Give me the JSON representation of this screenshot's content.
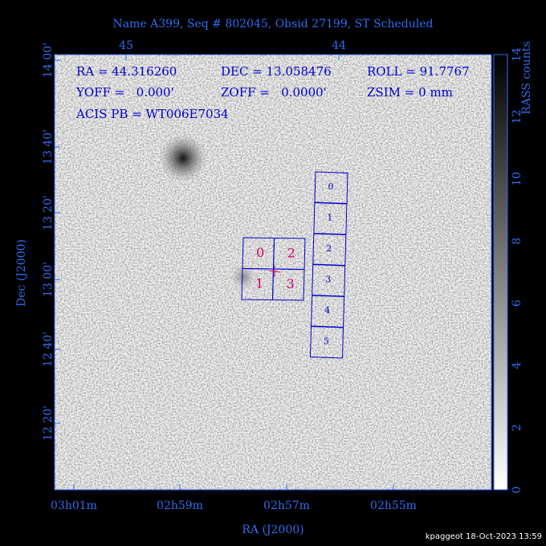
{
  "header": {
    "title": "Name A399, Seq # 802045, Obsid 27199, ST Scheduled"
  },
  "axes": {
    "top_ticks": [
      "45",
      "44"
    ],
    "left_ticks": [
      "14 00'",
      "13 40'",
      "13 20'",
      "13 00'",
      "12 40'",
      "12 20'"
    ],
    "bottom_ticks": [
      "03h01m",
      "02h59m",
      "02h57m",
      "02h55m"
    ],
    "x_label": "RA (J2000)",
    "y_label": "Dec (J2000)"
  },
  "info": [
    [
      "RA = 44.316260",
      "DEC = 13.058476",
      "ROLL = 91.7767"
    ],
    [
      "YOFF =   0.000'",
      "ZOFF =   0.0000'",
      "ZSIM = 0 mm"
    ],
    [
      "ACIS PB = WT006E7034"
    ]
  ],
  "acis_i": [
    "0",
    "2",
    "1",
    "3"
  ],
  "acis_s": [
    "0",
    "1",
    "2",
    "3",
    "4",
    "5"
  ],
  "colorbar": {
    "label": "RASS counts",
    "ticks": [
      "0",
      "2",
      "4",
      "6",
      "8",
      "10",
      "12",
      "14"
    ]
  },
  "footer": "kpaggeot 18-Oct-2023 13:59"
}
